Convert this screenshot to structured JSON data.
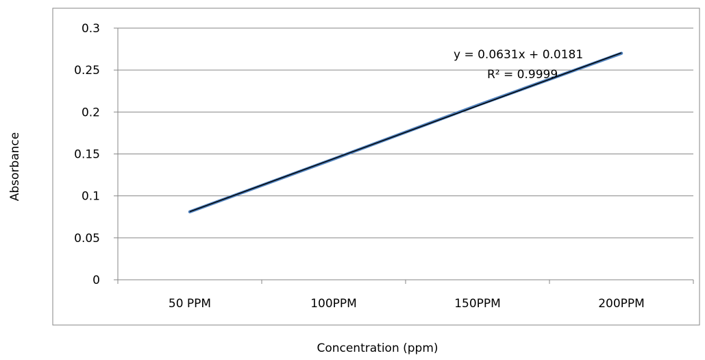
{
  "chart_data": {
    "type": "line",
    "title": "",
    "xlabel": "Concentration (ppm)",
    "ylabel": "Absorbance",
    "categories": [
      "50 PPM",
      "100PPM",
      "150PPM",
      "200PPM"
    ],
    "series": [
      {
        "values": [
          0.081,
          0.144,
          0.208,
          0.27
        ],
        "color": "#4f81bd"
      }
    ],
    "trendline": {
      "equation": "y = 0.0631x + 0.0181",
      "r_squared": "R² = 0.9999",
      "slope": 0.0631,
      "intercept": 0.0181,
      "color": "#000000"
    },
    "yticks": [
      "0",
      "0.05",
      "0.1",
      "0.15",
      "0.2",
      "0.25",
      "0.3"
    ],
    "ylim": [
      0,
      0.3
    ],
    "grid": true,
    "legend": "none"
  }
}
